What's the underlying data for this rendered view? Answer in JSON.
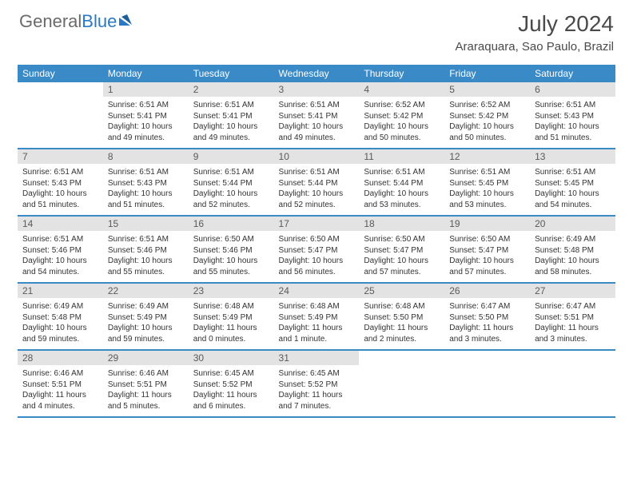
{
  "brand": {
    "part1": "General",
    "part2": "Blue"
  },
  "title": "July 2024",
  "location": "Araraquara, Sao Paulo, Brazil",
  "style": {
    "header_bg": "#3a8ac8",
    "header_fg": "#ffffff",
    "daynum_bg": "#e3e3e3",
    "daynum_fg": "#5a5a5a",
    "separator_color": "#3a8ac8",
    "body_text": "#333333",
    "brand_gray": "#6a6a6a",
    "brand_blue": "#2a79c4",
    "title_color": "#4a4a4a",
    "month_fontsize": 28,
    "location_fontsize": 15,
    "head_fontsize": 12,
    "cell_fontsize": 10
  },
  "weekdays": [
    "Sunday",
    "Monday",
    "Tuesday",
    "Wednesday",
    "Thursday",
    "Friday",
    "Saturday"
  ],
  "weeks": [
    {
      "nums": [
        "",
        "1",
        "2",
        "3",
        "4",
        "5",
        "6"
      ],
      "cells": [
        null,
        {
          "sr": "Sunrise: 6:51 AM",
          "ss": "Sunset: 5:41 PM",
          "d1": "Daylight: 10 hours",
          "d2": "and 49 minutes."
        },
        {
          "sr": "Sunrise: 6:51 AM",
          "ss": "Sunset: 5:41 PM",
          "d1": "Daylight: 10 hours",
          "d2": "and 49 minutes."
        },
        {
          "sr": "Sunrise: 6:51 AM",
          "ss": "Sunset: 5:41 PM",
          "d1": "Daylight: 10 hours",
          "d2": "and 49 minutes."
        },
        {
          "sr": "Sunrise: 6:52 AM",
          "ss": "Sunset: 5:42 PM",
          "d1": "Daylight: 10 hours",
          "d2": "and 50 minutes."
        },
        {
          "sr": "Sunrise: 6:52 AM",
          "ss": "Sunset: 5:42 PM",
          "d1": "Daylight: 10 hours",
          "d2": "and 50 minutes."
        },
        {
          "sr": "Sunrise: 6:51 AM",
          "ss": "Sunset: 5:43 PM",
          "d1": "Daylight: 10 hours",
          "d2": "and 51 minutes."
        }
      ]
    },
    {
      "nums": [
        "7",
        "8",
        "9",
        "10",
        "11",
        "12",
        "13"
      ],
      "cells": [
        {
          "sr": "Sunrise: 6:51 AM",
          "ss": "Sunset: 5:43 PM",
          "d1": "Daylight: 10 hours",
          "d2": "and 51 minutes."
        },
        {
          "sr": "Sunrise: 6:51 AM",
          "ss": "Sunset: 5:43 PM",
          "d1": "Daylight: 10 hours",
          "d2": "and 51 minutes."
        },
        {
          "sr": "Sunrise: 6:51 AM",
          "ss": "Sunset: 5:44 PM",
          "d1": "Daylight: 10 hours",
          "d2": "and 52 minutes."
        },
        {
          "sr": "Sunrise: 6:51 AM",
          "ss": "Sunset: 5:44 PM",
          "d1": "Daylight: 10 hours",
          "d2": "and 52 minutes."
        },
        {
          "sr": "Sunrise: 6:51 AM",
          "ss": "Sunset: 5:44 PM",
          "d1": "Daylight: 10 hours",
          "d2": "and 53 minutes."
        },
        {
          "sr": "Sunrise: 6:51 AM",
          "ss": "Sunset: 5:45 PM",
          "d1": "Daylight: 10 hours",
          "d2": "and 53 minutes."
        },
        {
          "sr": "Sunrise: 6:51 AM",
          "ss": "Sunset: 5:45 PM",
          "d1": "Daylight: 10 hours",
          "d2": "and 54 minutes."
        }
      ]
    },
    {
      "nums": [
        "14",
        "15",
        "16",
        "17",
        "18",
        "19",
        "20"
      ],
      "cells": [
        {
          "sr": "Sunrise: 6:51 AM",
          "ss": "Sunset: 5:46 PM",
          "d1": "Daylight: 10 hours",
          "d2": "and 54 minutes."
        },
        {
          "sr": "Sunrise: 6:51 AM",
          "ss": "Sunset: 5:46 PM",
          "d1": "Daylight: 10 hours",
          "d2": "and 55 minutes."
        },
        {
          "sr": "Sunrise: 6:50 AM",
          "ss": "Sunset: 5:46 PM",
          "d1": "Daylight: 10 hours",
          "d2": "and 55 minutes."
        },
        {
          "sr": "Sunrise: 6:50 AM",
          "ss": "Sunset: 5:47 PM",
          "d1": "Daylight: 10 hours",
          "d2": "and 56 minutes."
        },
        {
          "sr": "Sunrise: 6:50 AM",
          "ss": "Sunset: 5:47 PM",
          "d1": "Daylight: 10 hours",
          "d2": "and 57 minutes."
        },
        {
          "sr": "Sunrise: 6:50 AM",
          "ss": "Sunset: 5:47 PM",
          "d1": "Daylight: 10 hours",
          "d2": "and 57 minutes."
        },
        {
          "sr": "Sunrise: 6:49 AM",
          "ss": "Sunset: 5:48 PM",
          "d1": "Daylight: 10 hours",
          "d2": "and 58 minutes."
        }
      ]
    },
    {
      "nums": [
        "21",
        "22",
        "23",
        "24",
        "25",
        "26",
        "27"
      ],
      "cells": [
        {
          "sr": "Sunrise: 6:49 AM",
          "ss": "Sunset: 5:48 PM",
          "d1": "Daylight: 10 hours",
          "d2": "and 59 minutes."
        },
        {
          "sr": "Sunrise: 6:49 AM",
          "ss": "Sunset: 5:49 PM",
          "d1": "Daylight: 10 hours",
          "d2": "and 59 minutes."
        },
        {
          "sr": "Sunrise: 6:48 AM",
          "ss": "Sunset: 5:49 PM",
          "d1": "Daylight: 11 hours",
          "d2": "and 0 minutes."
        },
        {
          "sr": "Sunrise: 6:48 AM",
          "ss": "Sunset: 5:49 PM",
          "d1": "Daylight: 11 hours",
          "d2": "and 1 minute."
        },
        {
          "sr": "Sunrise: 6:48 AM",
          "ss": "Sunset: 5:50 PM",
          "d1": "Daylight: 11 hours",
          "d2": "and 2 minutes."
        },
        {
          "sr": "Sunrise: 6:47 AM",
          "ss": "Sunset: 5:50 PM",
          "d1": "Daylight: 11 hours",
          "d2": "and 3 minutes."
        },
        {
          "sr": "Sunrise: 6:47 AM",
          "ss": "Sunset: 5:51 PM",
          "d1": "Daylight: 11 hours",
          "d2": "and 3 minutes."
        }
      ]
    },
    {
      "nums": [
        "28",
        "29",
        "30",
        "31",
        "",
        "",
        ""
      ],
      "cells": [
        {
          "sr": "Sunrise: 6:46 AM",
          "ss": "Sunset: 5:51 PM",
          "d1": "Daylight: 11 hours",
          "d2": "and 4 minutes."
        },
        {
          "sr": "Sunrise: 6:46 AM",
          "ss": "Sunset: 5:51 PM",
          "d1": "Daylight: 11 hours",
          "d2": "and 5 minutes."
        },
        {
          "sr": "Sunrise: 6:45 AM",
          "ss": "Sunset: 5:52 PM",
          "d1": "Daylight: 11 hours",
          "d2": "and 6 minutes."
        },
        {
          "sr": "Sunrise: 6:45 AM",
          "ss": "Sunset: 5:52 PM",
          "d1": "Daylight: 11 hours",
          "d2": "and 7 minutes."
        },
        null,
        null,
        null
      ]
    }
  ]
}
